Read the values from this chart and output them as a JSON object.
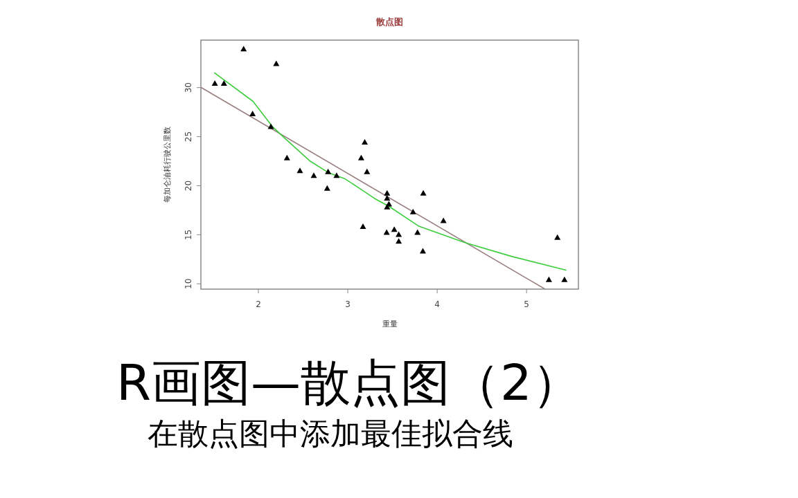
{
  "chart_data": {
    "type": "scatter",
    "title": "散点图",
    "xlabel": "重量",
    "ylabel": "每加仑油耗行驶公里数",
    "xlim": [
      1.357,
      5.58
    ],
    "ylim": [
      9.46,
      34.84
    ],
    "xticks": [
      2,
      3,
      4,
      5
    ],
    "yticks": [
      10,
      15,
      20,
      25,
      30
    ],
    "series": [
      {
        "marker": "triangle",
        "color": "#000000",
        "x": [
          2.62,
          2.875,
          2.32,
          3.215,
          3.44,
          3.46,
          3.57,
          3.19,
          3.15,
          3.44,
          3.44,
          4.07,
          3.73,
          3.78,
          5.25,
          5.424,
          5.345,
          2.2,
          1.615,
          1.835,
          2.465,
          3.52,
          3.435,
          3.84,
          3.845,
          1.935,
          2.14,
          1.513,
          3.17,
          2.77,
          3.57,
          2.78
        ],
        "values": [
          21.0,
          21.0,
          22.8,
          21.4,
          18.7,
          18.1,
          14.3,
          24.4,
          22.8,
          19.2,
          17.8,
          16.4,
          17.3,
          15.2,
          10.4,
          10.4,
          14.7,
          32.4,
          30.4,
          33.9,
          21.5,
          15.5,
          15.2,
          13.3,
          19.2,
          27.3,
          26.0,
          30.4,
          15.8,
          19.7,
          15.0,
          21.4
        ]
      },
      {
        "type": "line",
        "marker": "none",
        "color": "#9b7f7f",
        "x": [
          1.357,
          5.207
        ],
        "values": [
          30.03,
          9.46
        ]
      },
      {
        "type": "line",
        "marker": "none",
        "color": "#3ccc3c",
        "x": [
          1.51,
          1.94,
          2.16,
          2.3,
          2.58,
          2.79,
          2.97,
          3.17,
          3.3,
          3.46,
          3.79,
          4.31,
          4.83,
          5.44
        ],
        "values": [
          31.5,
          28.6,
          26.0,
          24.8,
          22.5,
          21.3,
          20.7,
          19.5,
          18.7,
          17.9,
          15.9,
          14.2,
          12.8,
          11.4
        ]
      }
    ],
    "annotations": [
      "R画图—散点图（2）",
      "在散点图中添加最佳拟合线"
    ]
  }
}
